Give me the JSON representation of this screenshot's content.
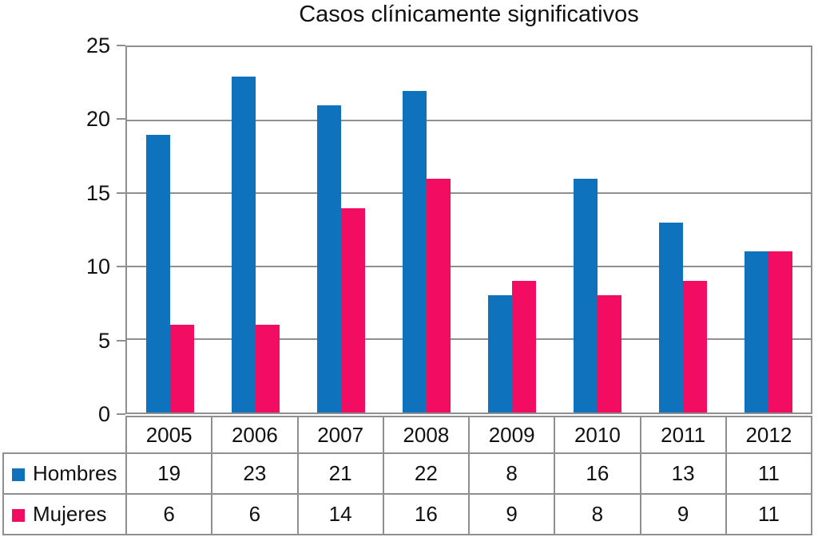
{
  "chart_data": {
    "type": "bar",
    "title": "Casos clínicamente significativos",
    "categories": [
      "2005",
      "2006",
      "2007",
      "2008",
      "2009",
      "2010",
      "2011",
      "2012"
    ],
    "series": [
      {
        "name": "Hombres",
        "color": "#0e72bc",
        "values": [
          19,
          23,
          21,
          22,
          8,
          16,
          13,
          11
        ]
      },
      {
        "name": "Mujeres",
        "color": "#f20d63",
        "values": [
          6,
          6,
          14,
          16,
          9,
          8,
          9,
          11
        ]
      }
    ],
    "xlabel": "",
    "ylabel": "",
    "ylim": [
      0,
      25
    ],
    "yticks": [
      0,
      5,
      10,
      15,
      20,
      25
    ],
    "grid": true,
    "grid_color": "#8f8f8f",
    "legend_position": "table-left",
    "data_table_shown": true
  }
}
